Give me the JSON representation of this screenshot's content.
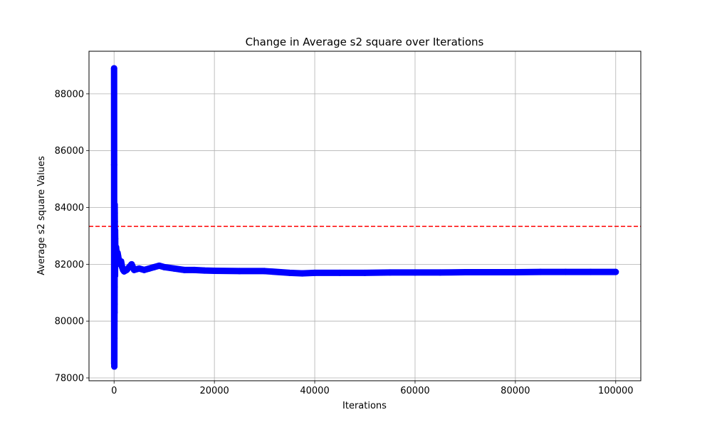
{
  "chart_data": {
    "type": "scatter",
    "title": "Change in Average s2 square over Iterations",
    "xlabel": "Iterations",
    "ylabel": "Average s2 square Values",
    "xlim": [
      -5000,
      105000
    ],
    "ylim": [
      77900,
      89500
    ],
    "x_ticks": [
      0,
      20000,
      40000,
      60000,
      80000,
      100000
    ],
    "x_tick_labels": [
      "0",
      "20000",
      "40000",
      "60000",
      "80000",
      "100000"
    ],
    "y_ticks": [
      78000,
      80000,
      82000,
      84000,
      86000,
      88000
    ],
    "y_tick_labels": [
      "78000",
      "80000",
      "82000",
      "84000",
      "86000",
      "88000"
    ],
    "grid": true,
    "point_color": "#0000ff",
    "reference_line": {
      "y": 83333,
      "color": "#ff0000",
      "style": "dashed"
    },
    "series": [
      {
        "x": [
          1,
          10,
          20,
          30,
          40,
          50,
          60,
          70,
          80,
          90,
          100,
          110,
          120,
          130,
          140,
          150,
          160,
          170,
          180,
          190,
          200,
          220,
          240,
          260,
          280,
          300,
          350,
          400,
          450,
          500,
          600,
          700,
          800,
          900,
          1000,
          1200,
          1400,
          1600,
          1800,
          2000,
          2500,
          3000,
          3500,
          4000,
          5000,
          6000,
          7000,
          8000,
          9000,
          10000,
          12000,
          14000,
          16000,
          18000,
          20000,
          25000,
          30000,
          35000,
          37500,
          40000,
          45000,
          50000,
          55000,
          60000,
          65000,
          70000,
          75000,
          80000,
          85000,
          90000,
          95000,
          100000
        ],
        "y": [
          88900,
          85500,
          78500,
          78700,
          78800,
          78400,
          79400,
          80000,
          80600,
          80300,
          81200,
          82500,
          84100,
          83800,
          83500,
          82800,
          83000,
          82400,
          82000,
          81600,
          83200,
          82900,
          82600,
          82400,
          82200,
          82400,
          82000,
          82600,
          82500,
          82300,
          82200,
          82400,
          82300,
          82200,
          82100,
          82000,
          82100,
          81900,
          81800,
          81750,
          81800,
          81900,
          82000,
          81800,
          81850,
          81800,
          81850,
          81900,
          81950,
          81900,
          81850,
          81800,
          81800,
          81780,
          81770,
          81760,
          81760,
          81700,
          81680,
          81700,
          81700,
          81700,
          81710,
          81710,
          81710,
          81720,
          81720,
          81720,
          81730,
          81730,
          81730,
          81730
        ]
      }
    ]
  }
}
